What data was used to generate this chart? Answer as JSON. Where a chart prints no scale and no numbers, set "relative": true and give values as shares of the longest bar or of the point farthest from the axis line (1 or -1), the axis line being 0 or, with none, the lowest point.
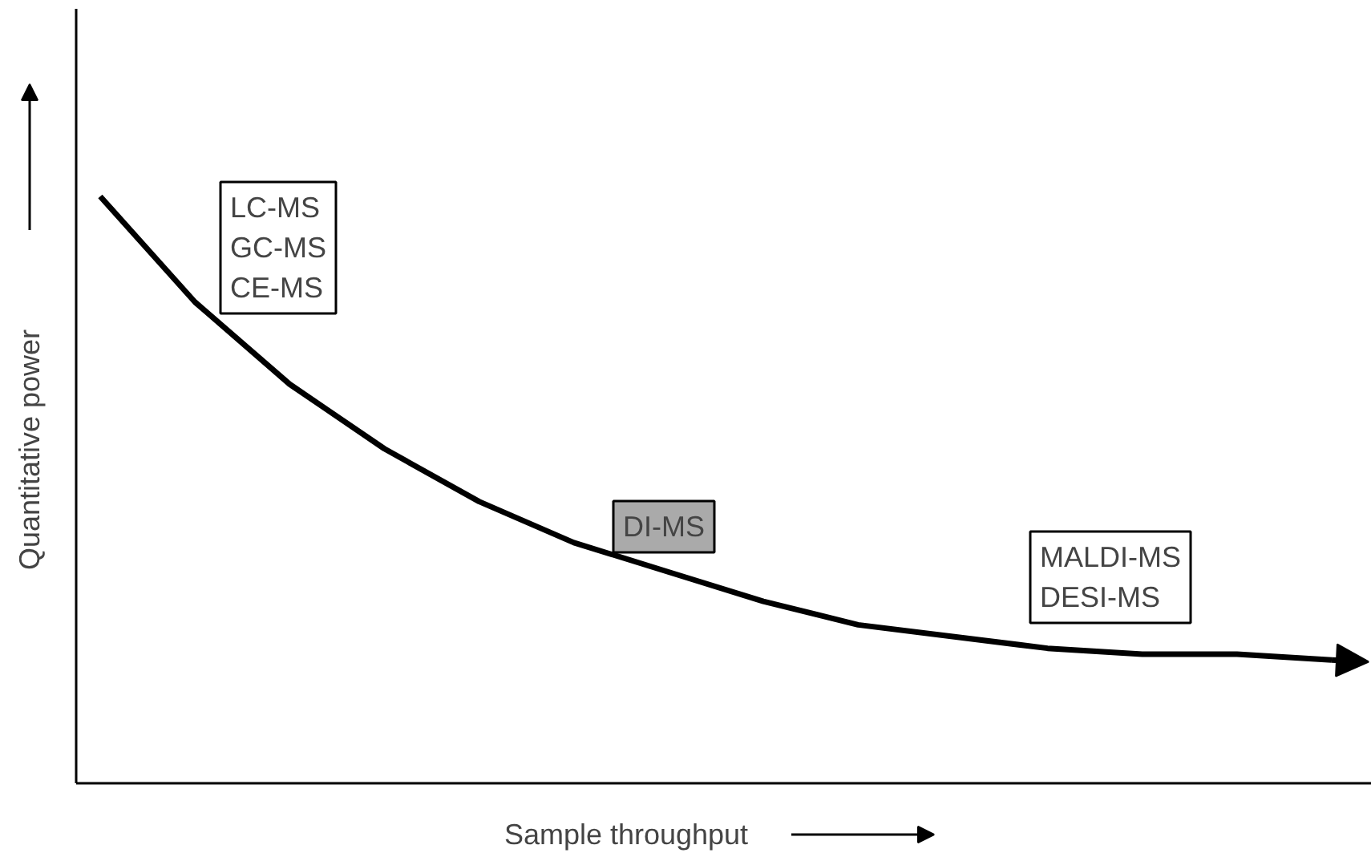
{
  "chart_data": {
    "type": "line",
    "relative": true,
    "xlabel": "Sample throughput",
    "ylabel": "Quantitative power",
    "categories": [
      null,
      null,
      null,
      null,
      null,
      null,
      null,
      null,
      null,
      null,
      null,
      null,
      null,
      null
    ],
    "series": [
      {
        "color": "#000000",
        "values": [
          1.0,
          0.82,
          0.68,
          0.57,
          0.48,
          0.41,
          0.36,
          0.31,
          0.27,
          0.25,
          0.23,
          0.22,
          0.22,
          0.21
        ]
      }
    ],
    "annotations": [
      "LC-MS\nGC-MS\nCE-MS",
      "DI-MS",
      "MALDI-MS\nDESI-MS"
    ],
    "marker": "none",
    "line_style": "solid"
  }
}
